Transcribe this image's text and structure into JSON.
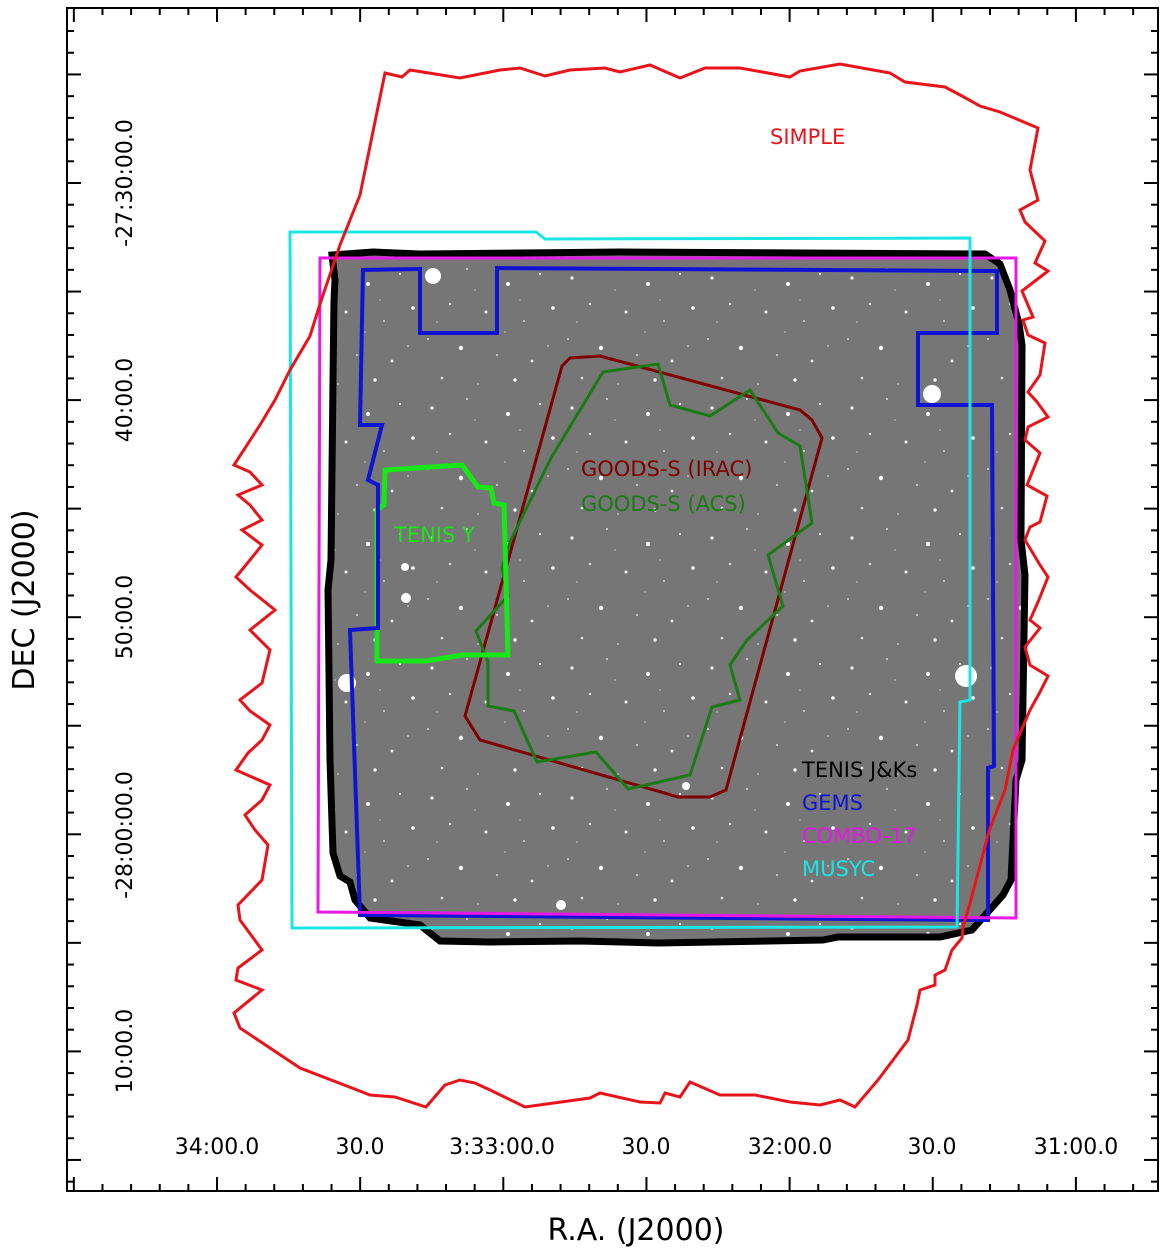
{
  "axes": {
    "xlabel": "R.A. (J2000)",
    "ylabel": "DEC (J2000)",
    "x_ticks": [
      "34:00.0",
      "30.0",
      "3:33:00.0",
      "30.0",
      "32:00.0",
      "30.0",
      "31:00.0"
    ],
    "y_ticks": [
      "-27:30:00.0",
      "40:00.0",
      "50:00.0",
      "-28:00:00.0",
      "10:00.0"
    ]
  },
  "regions": {
    "simple": {
      "label": "SIMPLE",
      "color": "#e8141a"
    },
    "goods_irac": {
      "label": "GOODS-S (IRAC)",
      "color": "#800000"
    },
    "goods_acs": {
      "label": "GOODS-S (ACS)",
      "color": "#1a7a14"
    },
    "tenis_y": {
      "label": "TENIS Y",
      "color": "#17e617"
    },
    "tenis_jks": {
      "label": "TENIS J&Ks",
      "color": "#000000"
    },
    "gems": {
      "label": "GEMS",
      "color": "#0f14d2"
    },
    "combo17": {
      "label": "COMBO-17",
      "color": "#e619e6"
    },
    "musyc": {
      "label": "MUSYC",
      "color": "#1ae6e6"
    }
  },
  "image": {
    "description_icon": "sky-image",
    "background": "#7d7d7d"
  }
}
